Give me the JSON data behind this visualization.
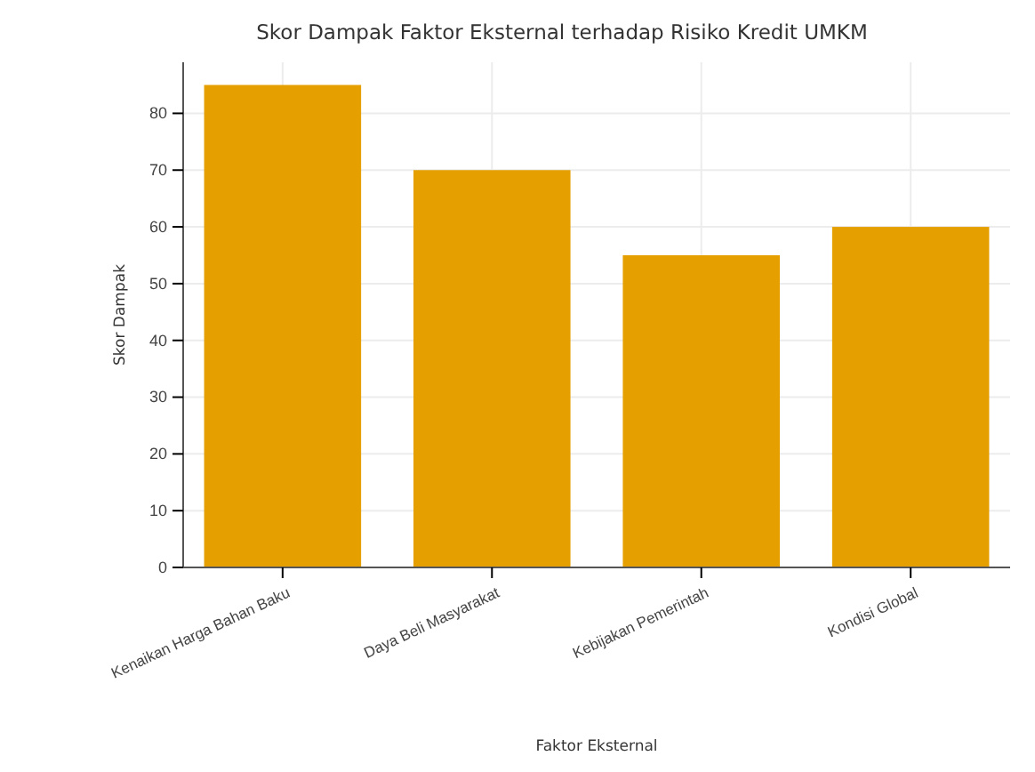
{
  "chart_data": {
    "type": "bar",
    "title": "Skor Dampak Faktor Eksternal terhadap Risiko Kredit UMKM",
    "xlabel": "Faktor Eksternal",
    "ylabel": "Skor Dampak",
    "categories": [
      "Kenaikan Harga Bahan Baku",
      "Daya Beli Masyarakat",
      "Kebijakan Pemerintah",
      "Kondisi Global"
    ],
    "values": [
      85,
      70,
      55,
      60
    ],
    "color": "#e5a000",
    "ylim": [
      0,
      89
    ],
    "yticks": [
      0,
      10,
      20,
      30,
      40,
      50,
      60,
      70,
      80
    ],
    "grid": true
  }
}
